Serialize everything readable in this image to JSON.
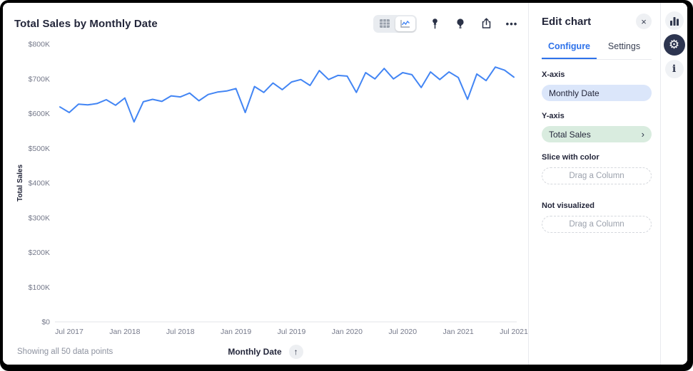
{
  "chart_panel": {
    "title": "Total Sales by Monthly Date",
    "toolbar_icons": [
      "table-view",
      "line-chart-view",
      "pin",
      "insight-bulb",
      "share-upload",
      "more-ellipsis"
    ],
    "footer": {
      "points_note": "Showing all 50 data points",
      "x_axis_label": "Monthly Date"
    }
  },
  "edit_panel": {
    "title": "Edit chart",
    "tabs": [
      {
        "label": "Configure",
        "active": true
      },
      {
        "label": "Settings",
        "active": false
      }
    ],
    "sections": {
      "x_axis": {
        "label": "X-axis",
        "value": "Monthly Date"
      },
      "y_axis": {
        "label": "Y-axis",
        "value": "Total Sales"
      },
      "slice": {
        "label": "Slice with color",
        "placeholder": "Drag a Column"
      },
      "not_visualized": {
        "label": "Not visualized",
        "placeholder": "Drag a Column"
      }
    }
  },
  "icon_rail": [
    "bar-chart",
    "gear-settings",
    "info"
  ],
  "glyphs": {
    "close": "×",
    "chevron": "›",
    "arrow_up": "↑",
    "gear": "⚙",
    "info": "i",
    "ellipsis": "•••"
  },
  "colors": {
    "line_blue": "#4285F4",
    "accent_blue": "#2E72EA",
    "pill_blue_bg": "#DBE6FA",
    "pill_green_bg": "#D9ECDF",
    "text_dark": "#23263A",
    "axis_grey": "#75798A",
    "baseline_grey": "#E3E5E9",
    "rail_active_bg": "#2D3550"
  },
  "chart_data": {
    "type": "line",
    "title": "Total Sales by Monthly Date",
    "xlabel": "Monthly Date",
    "ylabel": "Total Sales",
    "ylim": [
      0,
      800000
    ],
    "grid": false,
    "legend": false,
    "x": [
      "Jun 2017",
      "Jul 2017",
      "Aug 2017",
      "Sep 2017",
      "Oct 2017",
      "Nov 2017",
      "Dec 2017",
      "Jan 2018",
      "Feb 2018",
      "Mar 2018",
      "Apr 2018",
      "May 2018",
      "Jun 2018",
      "Jul 2018",
      "Aug 2018",
      "Sep 2018",
      "Oct 2018",
      "Nov 2018",
      "Dec 2018",
      "Jan 2019",
      "Feb 2019",
      "Mar 2019",
      "Apr 2019",
      "May 2019",
      "Jun 2019",
      "Jul 2019",
      "Aug 2019",
      "Sep 2019",
      "Oct 2019",
      "Nov 2019",
      "Dec 2019",
      "Jan 2020",
      "Feb 2020",
      "Mar 2020",
      "Apr 2020",
      "May 2020",
      "Jun 2020",
      "Jul 2020",
      "Aug 2020",
      "Sep 2020",
      "Oct 2020",
      "Nov 2020",
      "Dec 2020",
      "Jan 2021",
      "Feb 2021",
      "Mar 2021",
      "Apr 2021",
      "May 2021",
      "Jun 2021",
      "Jul 2021"
    ],
    "values": [
      619000,
      603000,
      627000,
      625000,
      629000,
      640000,
      624000,
      645000,
      576000,
      634000,
      641000,
      635000,
      651000,
      648000,
      659000,
      637000,
      655000,
      662000,
      665000,
      672000,
      603000,
      678000,
      661000,
      688000,
      669000,
      691000,
      698000,
      681000,
      724000,
      698000,
      710000,
      708000,
      661000,
      718000,
      700000,
      730000,
      700000,
      718000,
      712000,
      675000,
      720000,
      698000,
      720000,
      704000,
      641000,
      714000,
      695000,
      734000,
      725000,
      705000
    ],
    "y_ticks": [
      {
        "label": "$0",
        "value": 0
      },
      {
        "label": "$100K",
        "value": 100000
      },
      {
        "label": "$200K",
        "value": 200000
      },
      {
        "label": "$300K",
        "value": 300000
      },
      {
        "label": "$400K",
        "value": 400000
      },
      {
        "label": "$500K",
        "value": 500000
      },
      {
        "label": "$600K",
        "value": 600000
      },
      {
        "label": "$700K",
        "value": 700000
      },
      {
        "label": "$800K",
        "value": 800000
      }
    ],
    "x_ticks": [
      {
        "label": "Jul 2017",
        "index": 1
      },
      {
        "label": "Jan 2018",
        "index": 7
      },
      {
        "label": "Jul 2018",
        "index": 13
      },
      {
        "label": "Jan 2019",
        "index": 19
      },
      {
        "label": "Jul 2019",
        "index": 25
      },
      {
        "label": "Jan 2020",
        "index": 31
      },
      {
        "label": "Jul 2020",
        "index": 37
      },
      {
        "label": "Jan 2021",
        "index": 43
      },
      {
        "label": "Jul 2021",
        "index": 49
      }
    ]
  }
}
